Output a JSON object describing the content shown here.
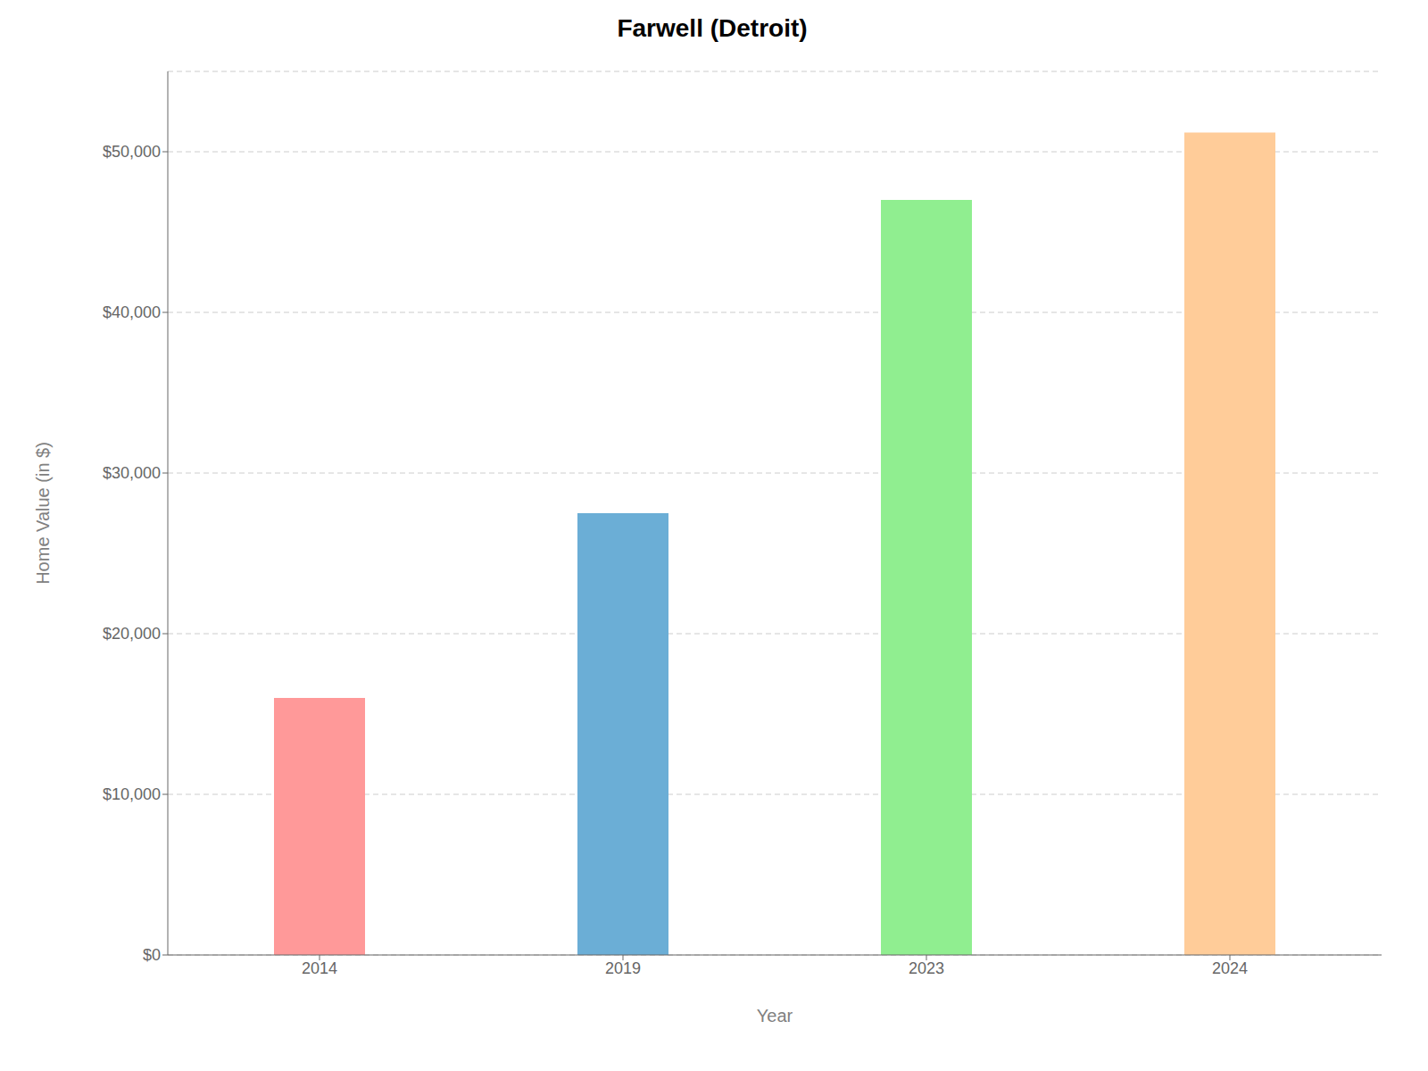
{
  "chart_data": {
    "type": "bar",
    "title": "Farwell (Detroit)",
    "categories": [
      "2014",
      "2019",
      "2023",
      "2024"
    ],
    "values": [
      16000,
      27500,
      47000,
      51200
    ],
    "colors": [
      "#FF9999",
      "#6BAED6",
      "#90EE90",
      "#FFCC99"
    ],
    "xlabel": "Year",
    "ylabel": "Home Value (in $)",
    "ylim": [
      0,
      55000
    ],
    "yticks": [
      {
        "value": 0,
        "label": "$0"
      },
      {
        "value": 10000,
        "label": "$10,000"
      },
      {
        "value": 20000,
        "label": "$20,000"
      },
      {
        "value": 30000,
        "label": "$30,000"
      },
      {
        "value": 40000,
        "label": "$40,000"
      },
      {
        "value": 50000,
        "label": "$50,000"
      }
    ],
    "grid": true
  }
}
